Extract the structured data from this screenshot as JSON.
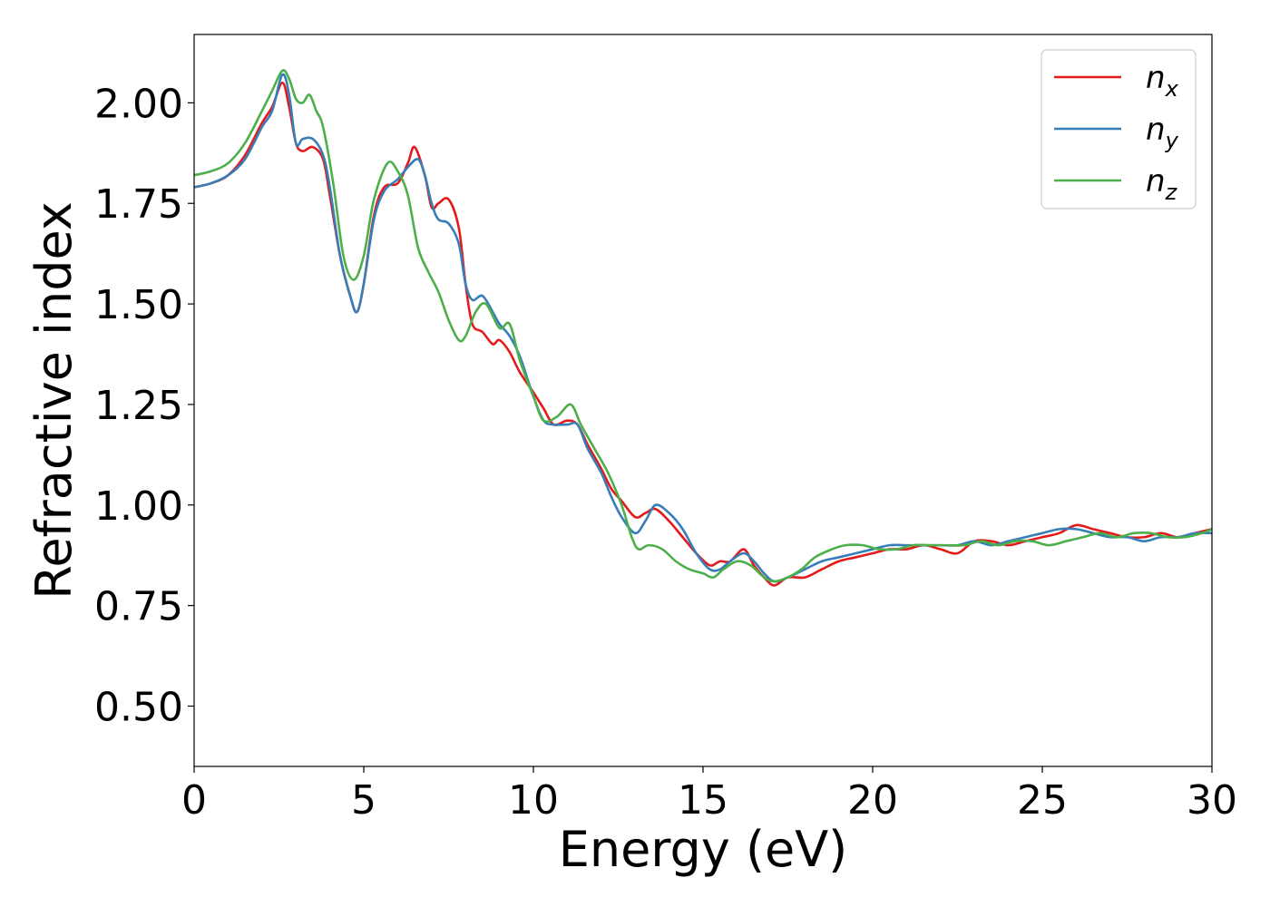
{
  "chart_data": {
    "type": "line",
    "xlabel": "Energy (eV)",
    "ylabel": "Refractive index",
    "xlim": [
      0,
      30
    ],
    "ylim": [
      0.35,
      2.17
    ],
    "xticks": [
      0,
      5,
      10,
      15,
      20,
      25,
      30
    ],
    "xtick_labels": [
      "0",
      "5",
      "10",
      "15",
      "20",
      "25",
      "30"
    ],
    "yticks": [
      0.5,
      0.75,
      1.0,
      1.25,
      1.5,
      1.75,
      2.0
    ],
    "ytick_labels": [
      "0.50",
      "0.75",
      "1.00",
      "1.25",
      "1.50",
      "1.75",
      "2.00"
    ],
    "grid": false,
    "legend_position": "top-right",
    "series": [
      {
        "name": "n",
        "subscript": "x",
        "color": "#e41a1c",
        "x": [
          0,
          0.5,
          1.0,
          1.5,
          2.0,
          2.3,
          2.6,
          2.8,
          3.0,
          3.2,
          3.5,
          3.8,
          4.0,
          4.3,
          4.6,
          4.8,
          5.0,
          5.3,
          5.6,
          6.0,
          6.3,
          6.5,
          6.8,
          7.0,
          7.2,
          7.5,
          7.8,
          8.0,
          8.2,
          8.5,
          8.8,
          9.0,
          9.3,
          9.6,
          10.0,
          10.3,
          10.6,
          11.0,
          11.3,
          11.6,
          12.0,
          12.3,
          12.6,
          13.0,
          13.3,
          13.6,
          14.0,
          14.4,
          14.8,
          15.2,
          15.5,
          15.8,
          16.2,
          16.5,
          16.8,
          17.1,
          17.5,
          18.0,
          18.5,
          19.0,
          19.5,
          20.0,
          20.5,
          21.0,
          21.5,
          22.0,
          22.5,
          23.0,
          23.5,
          24.0,
          24.5,
          25.0,
          25.5,
          26.0,
          26.5,
          27.0,
          27.5,
          28.0,
          28.5,
          29.0,
          29.5,
          30.0
        ],
        "y": [
          1.79,
          1.8,
          1.82,
          1.87,
          1.95,
          1.99,
          2.05,
          1.99,
          1.9,
          1.88,
          1.89,
          1.86,
          1.77,
          1.62,
          1.52,
          1.48,
          1.55,
          1.72,
          1.79,
          1.8,
          1.85,
          1.89,
          1.82,
          1.74,
          1.75,
          1.76,
          1.69,
          1.55,
          1.45,
          1.43,
          1.4,
          1.41,
          1.38,
          1.33,
          1.28,
          1.24,
          1.2,
          1.21,
          1.2,
          1.15,
          1.09,
          1.04,
          1.01,
          0.97,
          0.98,
          0.99,
          0.96,
          0.92,
          0.88,
          0.85,
          0.86,
          0.86,
          0.89,
          0.85,
          0.82,
          0.8,
          0.82,
          0.82,
          0.84,
          0.86,
          0.87,
          0.88,
          0.89,
          0.89,
          0.9,
          0.89,
          0.88,
          0.91,
          0.91,
          0.9,
          0.91,
          0.92,
          0.93,
          0.95,
          0.94,
          0.93,
          0.92,
          0.92,
          0.93,
          0.92,
          0.93,
          0.94
        ]
      },
      {
        "name": "n",
        "subscript": "y",
        "color": "#377eb8",
        "x": [
          0,
          0.5,
          1.0,
          1.5,
          2.0,
          2.3,
          2.6,
          2.8,
          3.0,
          3.2,
          3.5,
          3.8,
          4.0,
          4.3,
          4.6,
          4.8,
          5.0,
          5.3,
          5.6,
          6.0,
          6.3,
          6.6,
          6.8,
          7.0,
          7.2,
          7.5,
          7.8,
          8.0,
          8.2,
          8.5,
          8.8,
          9.0,
          9.3,
          9.6,
          10.0,
          10.3,
          10.6,
          11.0,
          11.3,
          11.6,
          12.0,
          12.3,
          12.6,
          13.0,
          13.3,
          13.6,
          14.0,
          14.4,
          14.8,
          15.2,
          15.5,
          15.8,
          16.2,
          16.5,
          16.8,
          17.1,
          17.5,
          18.0,
          18.5,
          19.0,
          19.5,
          20.0,
          20.5,
          21.0,
          21.5,
          22.0,
          22.5,
          23.0,
          23.5,
          24.0,
          24.5,
          25.0,
          25.5,
          26.0,
          26.5,
          27.0,
          27.5,
          28.0,
          28.5,
          29.0,
          29.5,
          30.0
        ],
        "y": [
          1.79,
          1.8,
          1.82,
          1.86,
          1.94,
          1.98,
          2.07,
          2.02,
          1.9,
          1.91,
          1.91,
          1.87,
          1.79,
          1.62,
          1.52,
          1.48,
          1.55,
          1.71,
          1.78,
          1.81,
          1.84,
          1.86,
          1.82,
          1.75,
          1.71,
          1.7,
          1.65,
          1.55,
          1.51,
          1.52,
          1.48,
          1.45,
          1.42,
          1.37,
          1.27,
          1.21,
          1.2,
          1.2,
          1.2,
          1.14,
          1.08,
          1.02,
          0.97,
          0.93,
          0.96,
          1.0,
          0.98,
          0.94,
          0.88,
          0.84,
          0.84,
          0.86,
          0.88,
          0.86,
          0.83,
          0.81,
          0.82,
          0.84,
          0.86,
          0.87,
          0.88,
          0.89,
          0.9,
          0.9,
          0.9,
          0.9,
          0.9,
          0.91,
          0.9,
          0.91,
          0.92,
          0.93,
          0.94,
          0.94,
          0.93,
          0.92,
          0.92,
          0.91,
          0.92,
          0.92,
          0.93,
          0.93
        ]
      },
      {
        "name": "n",
        "subscript": "z",
        "color": "#4daf4a",
        "x": [
          0,
          0.5,
          1.0,
          1.5,
          2.0,
          2.3,
          2.6,
          2.8,
          3.0,
          3.2,
          3.4,
          3.6,
          3.8,
          4.1,
          4.4,
          4.7,
          5.0,
          5.3,
          5.7,
          6.0,
          6.3,
          6.6,
          6.9,
          7.2,
          7.5,
          7.8,
          8.0,
          8.3,
          8.6,
          9.0,
          9.3,
          9.6,
          10.0,
          10.3,
          10.7,
          11.1,
          11.4,
          11.8,
          12.2,
          12.6,
          12.9,
          13.1,
          13.4,
          13.8,
          14.2,
          14.6,
          15.0,
          15.3,
          15.6,
          16.0,
          16.4,
          16.8,
          17.1,
          17.5,
          17.9,
          18.3,
          18.8,
          19.2,
          19.7,
          20.2,
          20.7,
          21.2,
          21.7,
          22.2,
          22.7,
          23.2,
          23.7,
          24.2,
          24.7,
          25.2,
          25.7,
          26.2,
          26.7,
          27.2,
          27.7,
          28.2,
          28.7,
          29.2,
          29.7,
          30.0
        ],
        "y": [
          1.82,
          1.83,
          1.85,
          1.9,
          1.98,
          2.03,
          2.08,
          2.06,
          2.01,
          2.0,
          2.02,
          1.98,
          1.94,
          1.8,
          1.62,
          1.56,
          1.62,
          1.76,
          1.85,
          1.83,
          1.77,
          1.64,
          1.58,
          1.53,
          1.46,
          1.41,
          1.42,
          1.48,
          1.5,
          1.44,
          1.45,
          1.36,
          1.27,
          1.21,
          1.22,
          1.25,
          1.2,
          1.14,
          1.08,
          1.0,
          0.92,
          0.89,
          0.9,
          0.89,
          0.86,
          0.84,
          0.83,
          0.82,
          0.84,
          0.86,
          0.85,
          0.82,
          0.81,
          0.82,
          0.84,
          0.87,
          0.89,
          0.9,
          0.9,
          0.89,
          0.89,
          0.9,
          0.9,
          0.9,
          0.9,
          0.91,
          0.9,
          0.91,
          0.91,
          0.9,
          0.91,
          0.92,
          0.93,
          0.92,
          0.93,
          0.93,
          0.92,
          0.92,
          0.93,
          0.94
        ]
      }
    ]
  }
}
